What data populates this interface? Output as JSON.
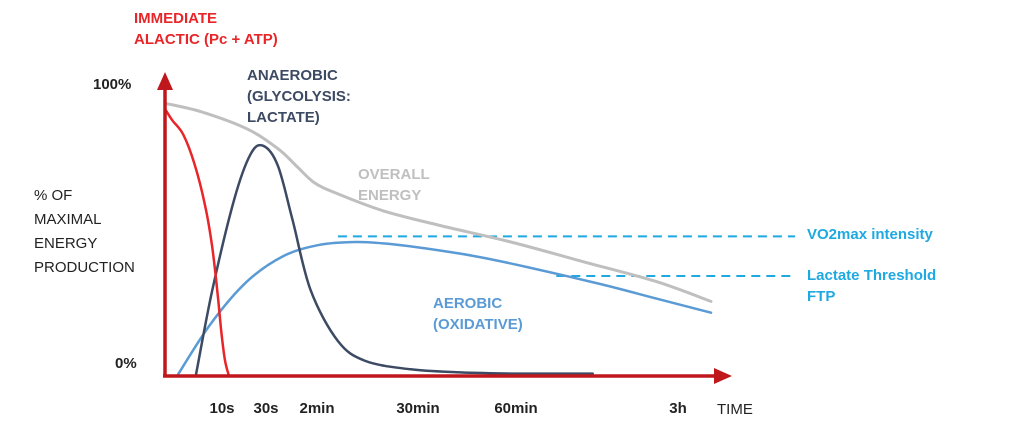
{
  "chart_data": {
    "type": "line",
    "title": "",
    "ylabel_lines": [
      "% OF",
      "MAXIMAL",
      "ENERGY",
      "PRODUCTION"
    ],
    "y_tick_labels": [
      "100%",
      "0%"
    ],
    "xlabel": "TIME",
    "x_tick_labels": [
      "10s",
      "30s",
      "2min",
      "30min",
      "60min",
      "3h"
    ],
    "ylim": [
      0,
      100
    ],
    "series": [
      {
        "name_lines": [
          "IMMEDIATE",
          "ALACTIC (Pc + ATP)"
        ],
        "color": "#e8262a",
        "x": [
          0,
          0.01,
          0.04,
          0.1,
          0.16,
          0.22,
          0.26,
          0.29,
          0.31,
          0.33,
          0.35
        ],
        "y": [
          94,
          93,
          90,
          85,
          75,
          60,
          45,
          28,
          15,
          5,
          0
        ]
      },
      {
        "name_lines": [
          "ANAEROBIC",
          "(GLYCOLYSIS:",
          "LACTATE)"
        ],
        "color": "#3d4a63",
        "x": [
          0.17,
          0.26,
          0.38,
          0.47,
          0.54,
          0.62,
          0.7,
          0.8,
          0.95,
          1.1,
          1.35,
          1.6,
          1.9,
          2.1,
          2.35
        ],
        "y": [
          0,
          30,
          62,
          78,
          81,
          74,
          55,
          30,
          12,
          5,
          2,
          1,
          0.5,
          0.5,
          0.5
        ]
      },
      {
        "name_lines": [
          "AEROBIC",
          "(OXIDATIVE)"
        ],
        "color": "#5b9bd5",
        "x": [
          0.07,
          0.25,
          0.45,
          0.65,
          0.85,
          1.05,
          1.2,
          1.4,
          1.7,
          2.0,
          2.4,
          2.7,
          3.0
        ],
        "y": [
          0,
          18,
          33,
          42,
          46,
          47,
          46.5,
          45,
          42,
          38,
          32,
          27,
          22
        ]
      },
      {
        "name_lines": [
          "OVERALL",
          "ENERGY"
        ],
        "color": "#bfbfbf",
        "x": [
          0,
          0.2,
          0.45,
          0.62,
          0.72,
          0.82,
          0.95,
          1.2,
          1.5,
          1.9,
          2.3,
          2.7,
          3.0
        ],
        "y": [
          96,
          93,
          87,
          80,
          74,
          68,
          64,
          58,
          53,
          47,
          40,
          33,
          26
        ]
      }
    ],
    "reference_lines": [
      {
        "label_lines": [
          "VO2max intensity"
        ],
        "y": 49,
        "x_start": 0.95,
        "color": "#1fa9e1"
      },
      {
        "label_lines": [
          "Lactate Threshold",
          "FTP"
        ],
        "y": 35,
        "x_start": 2.15,
        "color": "#1fa9e1"
      }
    ],
    "axis_color": "#c0171c"
  }
}
